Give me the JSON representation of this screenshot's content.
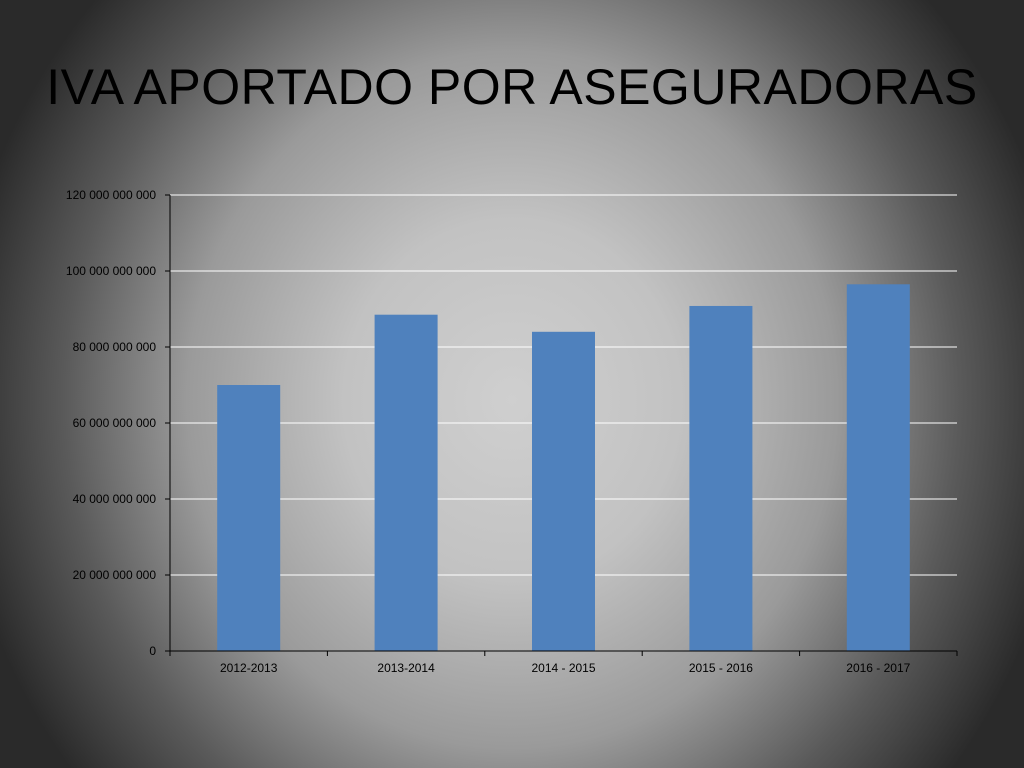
{
  "slide": {
    "title": "IVA APORTADO POR ASEGURADORAS"
  },
  "chart_data": {
    "type": "bar",
    "title": "",
    "xlabel": "",
    "ylabel": "",
    "categories": [
      "2012-2013",
      "2013-2014",
      "2014 - 2015",
      "2015 - 2016",
      "2016 - 2017"
    ],
    "values": [
      70000000000,
      88500000000,
      84000000000,
      90800000000,
      96500000000
    ],
    "ylim": [
      0,
      120000000000
    ],
    "yticks": [
      0,
      20000000000,
      40000000000,
      60000000000,
      80000000000,
      100000000000,
      120000000000
    ],
    "ytick_labels": [
      "0",
      "20 000 000 000",
      "40 000 000 000",
      "60 000 000 000",
      "80 000 000 000",
      "100 000 000 000",
      "120 000 000 000"
    ],
    "grid": true,
    "legend": "none",
    "bar_color": "#4f81bd",
    "grid_color": "#ffffff"
  }
}
